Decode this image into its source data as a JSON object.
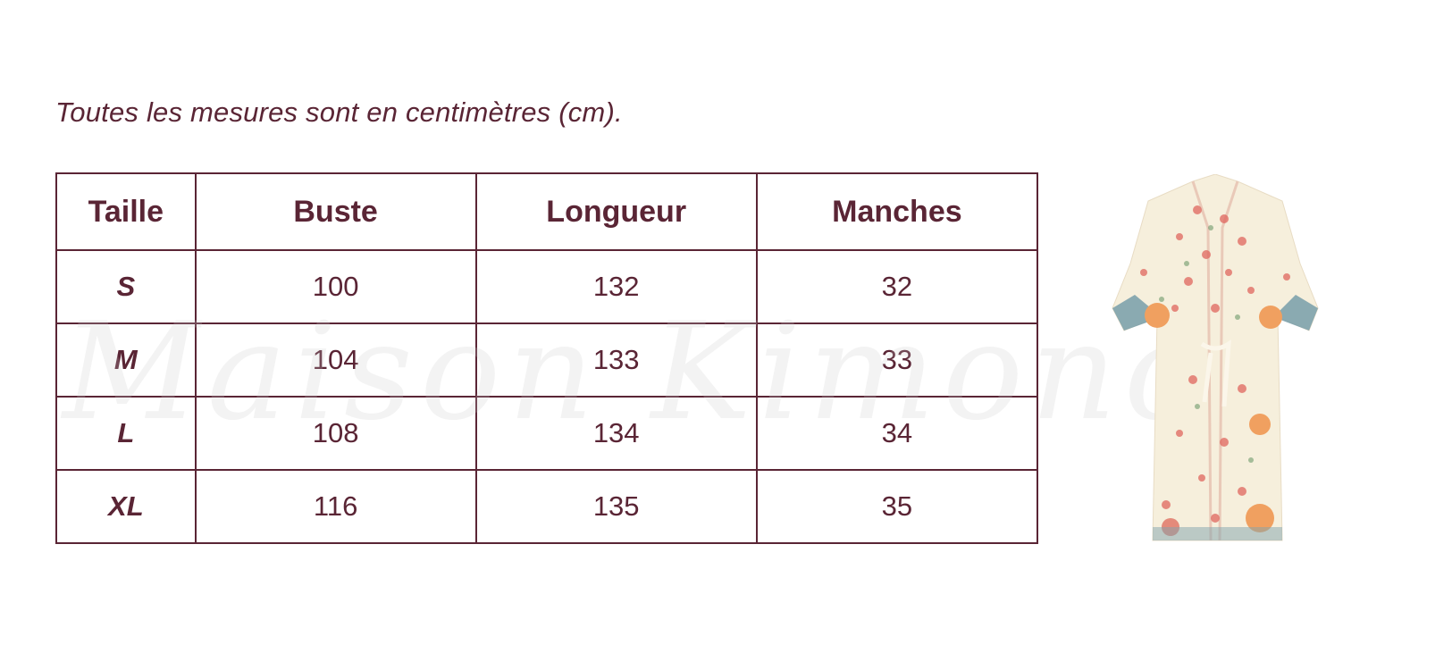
{
  "note": "Toutes les mesures sont en centimètres (cm).",
  "watermark": "Maison Kimono",
  "table": {
    "headers": [
      "Taille",
      "Buste",
      "Longueur",
      "Manches"
    ],
    "rows": [
      [
        "S",
        "100",
        "132",
        "32"
      ],
      [
        "M",
        "104",
        "133",
        "33"
      ],
      [
        "L",
        "108",
        "134",
        "34"
      ],
      [
        "XL",
        "116",
        "135",
        "35"
      ]
    ]
  },
  "colors": {
    "text": "#5a2535",
    "border": "#5a2535"
  },
  "image": "floral-kimono-product-photo"
}
